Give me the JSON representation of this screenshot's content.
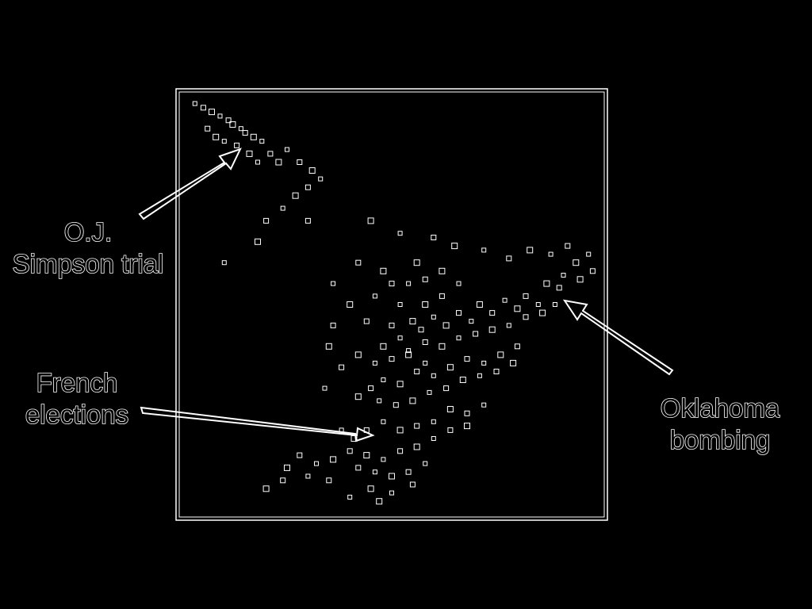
{
  "chart_data": {
    "type": "scatter",
    "title": "",
    "xlabel": "",
    "ylabel": "",
    "xlim": [
      0,
      1
    ],
    "ylim": [
      0,
      1
    ],
    "grid": false,
    "style": {
      "background": "#000000",
      "foreground": "#ffffff"
    },
    "annotations": [
      {
        "id": "oj",
        "lines": [
          "O.J.",
          "Simpson trial"
        ],
        "x": 0.14,
        "y": 0.9
      },
      {
        "id": "oklahoma",
        "lines": [
          "Oklahoma",
          "bombing"
        ],
        "x": 0.91,
        "y": 0.5
      },
      {
        "id": "french",
        "lines": [
          "French",
          "elections"
        ],
        "x": 0.41,
        "y": 0.17
      }
    ],
    "series": [
      {
        "points": [
          [
            0.03,
            0.98
          ],
          [
            0.05,
            0.97
          ],
          [
            0.07,
            0.96
          ],
          [
            0.09,
            0.95
          ],
          [
            0.11,
            0.94
          ],
          [
            0.12,
            0.93
          ],
          [
            0.14,
            0.92
          ],
          [
            0.15,
            0.91
          ],
          [
            0.17,
            0.9
          ],
          [
            0.19,
            0.89
          ],
          [
            0.06,
            0.92
          ],
          [
            0.08,
            0.9
          ],
          [
            0.1,
            0.89
          ],
          [
            0.13,
            0.88
          ],
          [
            0.16,
            0.86
          ],
          [
            0.18,
            0.84
          ],
          [
            0.21,
            0.86
          ],
          [
            0.23,
            0.84
          ],
          [
            0.25,
            0.87
          ],
          [
            0.28,
            0.84
          ],
          [
            0.31,
            0.82
          ],
          [
            0.33,
            0.8
          ],
          [
            0.3,
            0.78
          ],
          [
            0.27,
            0.76
          ],
          [
            0.24,
            0.73
          ],
          [
            0.2,
            0.7
          ],
          [
            0.18,
            0.65
          ],
          [
            0.1,
            0.6
          ],
          [
            0.3,
            0.7
          ],
          [
            0.45,
            0.7
          ],
          [
            0.52,
            0.67
          ],
          [
            0.6,
            0.66
          ],
          [
            0.65,
            0.64
          ],
          [
            0.72,
            0.63
          ],
          [
            0.78,
            0.61
          ],
          [
            0.83,
            0.63
          ],
          [
            0.88,
            0.62
          ],
          [
            0.92,
            0.64
          ],
          [
            0.94,
            0.6
          ],
          [
            0.97,
            0.62
          ],
          [
            0.98,
            0.58
          ],
          [
            0.95,
            0.56
          ],
          [
            0.91,
            0.57
          ],
          [
            0.9,
            0.54
          ],
          [
            0.87,
            0.55
          ],
          [
            0.85,
            0.5
          ],
          [
            0.82,
            0.52
          ],
          [
            0.8,
            0.49
          ],
          [
            0.77,
            0.51
          ],
          [
            0.74,
            0.48
          ],
          [
            0.71,
            0.5
          ],
          [
            0.69,
            0.46
          ],
          [
            0.66,
            0.48
          ],
          [
            0.63,
            0.45
          ],
          [
            0.6,
            0.47
          ],
          [
            0.57,
            0.44
          ],
          [
            0.55,
            0.46
          ],
          [
            0.52,
            0.42
          ],
          [
            0.5,
            0.45
          ],
          [
            0.48,
            0.4
          ],
          [
            0.54,
            0.39
          ],
          [
            0.58,
            0.41
          ],
          [
            0.62,
            0.4
          ],
          [
            0.66,
            0.42
          ],
          [
            0.7,
            0.43
          ],
          [
            0.74,
            0.44
          ],
          [
            0.78,
            0.45
          ],
          [
            0.82,
            0.47
          ],
          [
            0.86,
            0.48
          ],
          [
            0.89,
            0.5
          ],
          [
            0.8,
            0.4
          ],
          [
            0.76,
            0.38
          ],
          [
            0.72,
            0.36
          ],
          [
            0.68,
            0.37
          ],
          [
            0.64,
            0.35
          ],
          [
            0.6,
            0.33
          ],
          [
            0.56,
            0.34
          ],
          [
            0.52,
            0.31
          ],
          [
            0.48,
            0.32
          ],
          [
            0.45,
            0.3
          ],
          [
            0.42,
            0.28
          ],
          [
            0.47,
            0.27
          ],
          [
            0.51,
            0.26
          ],
          [
            0.55,
            0.27
          ],
          [
            0.59,
            0.29
          ],
          [
            0.63,
            0.3
          ],
          [
            0.67,
            0.32
          ],
          [
            0.71,
            0.33
          ],
          [
            0.75,
            0.34
          ],
          [
            0.79,
            0.36
          ],
          [
            0.72,
            0.26
          ],
          [
            0.68,
            0.24
          ],
          [
            0.64,
            0.25
          ],
          [
            0.6,
            0.22
          ],
          [
            0.56,
            0.21
          ],
          [
            0.52,
            0.2
          ],
          [
            0.48,
            0.22
          ],
          [
            0.44,
            0.2
          ],
          [
            0.41,
            0.18
          ],
          [
            0.38,
            0.2
          ],
          [
            0.4,
            0.15
          ],
          [
            0.44,
            0.14
          ],
          [
            0.48,
            0.13
          ],
          [
            0.52,
            0.15
          ],
          [
            0.56,
            0.16
          ],
          [
            0.6,
            0.18
          ],
          [
            0.64,
            0.2
          ],
          [
            0.68,
            0.21
          ],
          [
            0.58,
            0.12
          ],
          [
            0.54,
            0.1
          ],
          [
            0.5,
            0.09
          ],
          [
            0.46,
            0.1
          ],
          [
            0.42,
            0.11
          ],
          [
            0.36,
            0.13
          ],
          [
            0.32,
            0.12
          ],
          [
            0.28,
            0.14
          ],
          [
            0.25,
            0.11
          ],
          [
            0.3,
            0.09
          ],
          [
            0.35,
            0.08
          ],
          [
            0.45,
            0.06
          ],
          [
            0.5,
            0.05
          ],
          [
            0.55,
            0.07
          ],
          [
            0.47,
            0.03
          ],
          [
            0.4,
            0.04
          ],
          [
            0.24,
            0.08
          ],
          [
            0.2,
            0.06
          ],
          [
            0.34,
            0.3
          ],
          [
            0.38,
            0.35
          ],
          [
            0.42,
            0.38
          ],
          [
            0.46,
            0.36
          ],
          [
            0.5,
            0.37
          ],
          [
            0.54,
            0.38
          ],
          [
            0.58,
            0.36
          ],
          [
            0.44,
            0.46
          ],
          [
            0.4,
            0.5
          ],
          [
            0.36,
            0.55
          ],
          [
            0.42,
            0.6
          ],
          [
            0.48,
            0.58
          ],
          [
            0.54,
            0.55
          ],
          [
            0.58,
            0.56
          ],
          [
            0.62,
            0.58
          ],
          [
            0.66,
            0.55
          ],
          [
            0.62,
            0.52
          ],
          [
            0.58,
            0.5
          ],
          [
            0.52,
            0.5
          ],
          [
            0.36,
            0.45
          ],
          [
            0.35,
            0.4
          ],
          [
            0.46,
            0.52
          ],
          [
            0.5,
            0.55
          ],
          [
            0.56,
            0.6
          ]
        ]
      }
    ]
  }
}
